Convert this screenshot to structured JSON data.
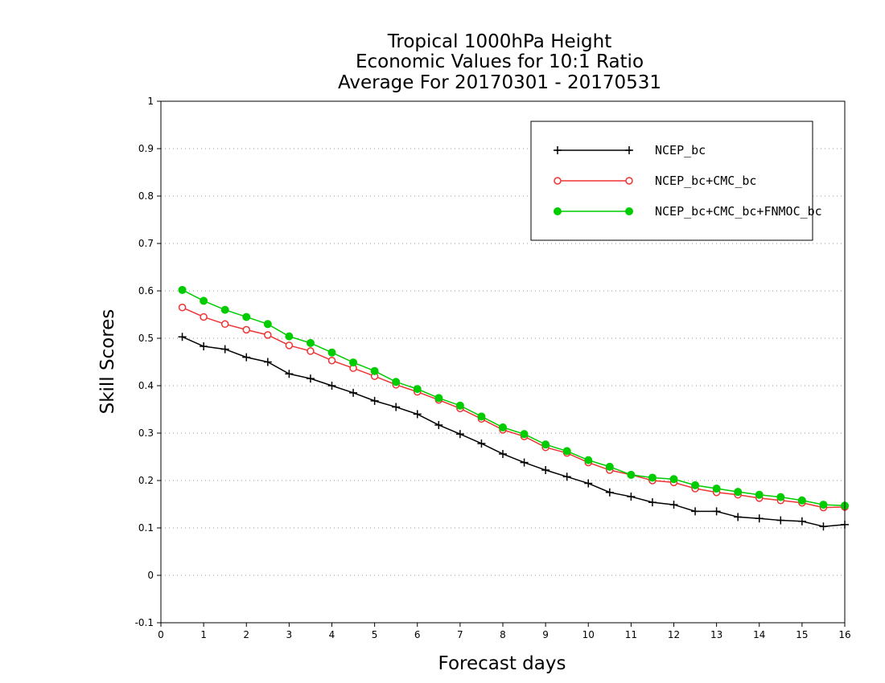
{
  "chart_data": {
    "type": "line",
    "title_lines": [
      "Tropical 1000hPa Height",
      "Economic Values for 10:1 Ratio",
      "Average For 20170301 - 20170531"
    ],
    "xlabel": "Forecast days",
    "ylabel": "Skill Scores",
    "xlim": [
      0,
      16
    ],
    "ylim": [
      -0.1,
      1
    ],
    "x_ticks": [
      0,
      1,
      2,
      3,
      4,
      5,
      6,
      7,
      8,
      9,
      10,
      11,
      12,
      13,
      14,
      15,
      16
    ],
    "y_ticks": [
      -0.1,
      0,
      0.1,
      0.2,
      0.3,
      0.4,
      0.5,
      0.6,
      0.7,
      0.8,
      0.9,
      1
    ],
    "y_tick_labels": [
      "-0.1",
      "0",
      "0.1",
      "0.2",
      "0.3",
      "0.4",
      "0.5",
      "0.6",
      "0.7",
      "0.8",
      "0.9",
      "1"
    ],
    "grid": "horizontal dotted",
    "legend_position": "top-right",
    "x": [
      0.5,
      1,
      1.5,
      2,
      2.5,
      3,
      3.5,
      4,
      4.5,
      5,
      5.5,
      6,
      6.5,
      7,
      7.5,
      8,
      8.5,
      9,
      9.5,
      10,
      10.5,
      11,
      11.5,
      12,
      12.5,
      13,
      13.5,
      14,
      14.5,
      15,
      15.5,
      16
    ],
    "series": [
      {
        "name": "NCEP_bc",
        "color": "#000000",
        "marker": "plus",
        "values": [
          0.503,
          0.483,
          0.477,
          0.46,
          0.45,
          0.425,
          0.415,
          0.4,
          0.385,
          0.368,
          0.355,
          0.34,
          0.317,
          0.298,
          0.278,
          0.256,
          0.238,
          0.222,
          0.208,
          0.194,
          0.175,
          0.166,
          0.154,
          0.149,
          0.135,
          0.135,
          0.123,
          0.12,
          0.116,
          0.114,
          0.103,
          0.107
        ]
      },
      {
        "name": "NCEP_bc+CMC_bc",
        "color": "#ee3333",
        "marker": "open-circle",
        "values": [
          0.565,
          0.545,
          0.53,
          0.518,
          0.507,
          0.485,
          0.473,
          0.453,
          0.437,
          0.42,
          0.402,
          0.387,
          0.37,
          0.352,
          0.33,
          0.307,
          0.293,
          0.27,
          0.258,
          0.238,
          0.222,
          0.212,
          0.2,
          0.196,
          0.183,
          0.175,
          0.17,
          0.163,
          0.158,
          0.153,
          0.143,
          0.144
        ]
      },
      {
        "name": "NCEP_bc+CMC_bc+FNMOC_bc",
        "color": "#00cc00",
        "marker": "filled-circle",
        "values": [
          0.602,
          0.579,
          0.56,
          0.545,
          0.53,
          0.504,
          0.49,
          0.47,
          0.449,
          0.431,
          0.408,
          0.393,
          0.374,
          0.358,
          0.335,
          0.312,
          0.298,
          0.276,
          0.262,
          0.243,
          0.229,
          0.212,
          0.206,
          0.203,
          0.19,
          0.183,
          0.176,
          0.17,
          0.165,
          0.158,
          0.149,
          0.147
        ]
      }
    ]
  }
}
